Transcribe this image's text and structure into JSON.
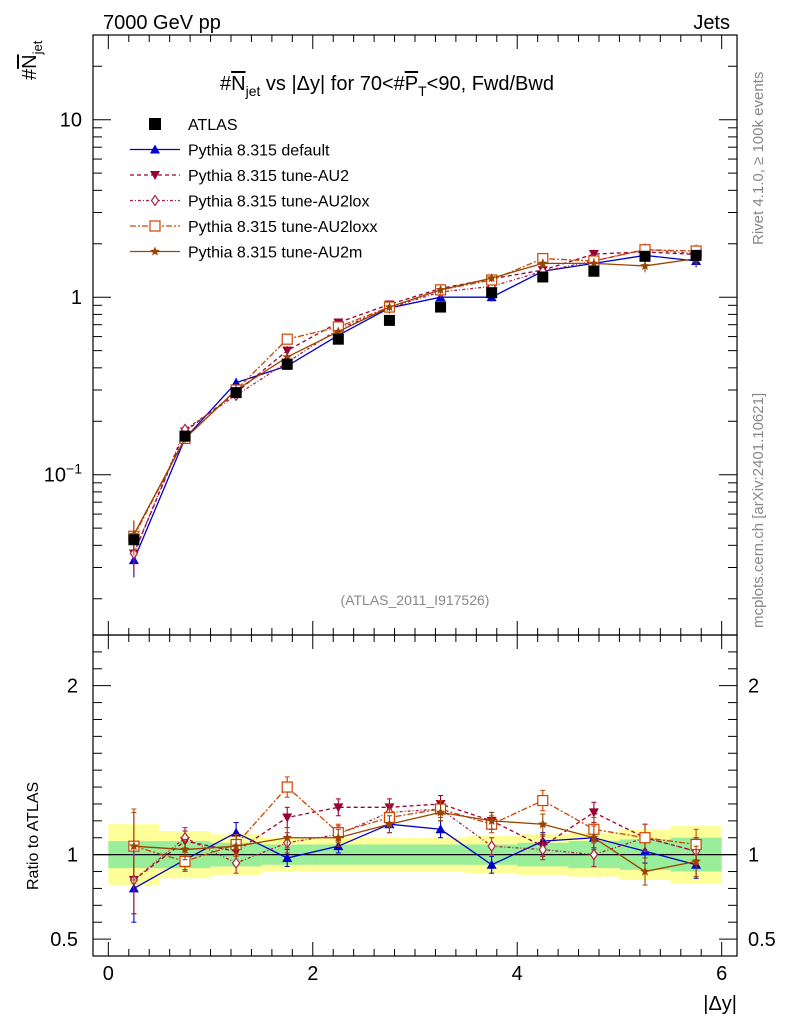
{
  "header": {
    "left": "7000 GeV pp",
    "right": "Jets"
  },
  "side_labels": {
    "rivet": "Rivet 4.1.0, ≥ 100k events",
    "mcplots": "mcplots.cern.ch [arXiv:2401.10621]"
  },
  "watermark": "(ATLAS_2011_I917526)",
  "chart_data": {
    "type": "line",
    "title": "#N̅jet vs |Δy| for 70<#P̅T<90, Fwd/Bwd",
    "title_parts": {
      "hash1": "#",
      "n": "N",
      "jet": "jet",
      "mid": " vs |Δy| for 70<#",
      "p": "P",
      "t": "T",
      "end": "<90, Fwd/Bwd"
    },
    "ylabel_parts": {
      "hash": "#",
      "n": "N",
      "jet": "jet"
    },
    "xlabel": "|Δy|",
    "ratio_ylabel": "Ratio to ATLAS",
    "xlim": [
      -0.15,
      6.15
    ],
    "ylim": [
      0.0125,
      30
    ],
    "ratio_ylim": [
      0.4,
      2.3
    ],
    "x_ticks": [
      {
        "v": 0,
        "t": "0"
      },
      {
        "v": 2,
        "t": "2"
      },
      {
        "v": 4,
        "t": "4"
      },
      {
        "v": 6,
        "t": "6"
      }
    ],
    "y_ticks": [
      {
        "v": 10,
        "t": "10"
      },
      {
        "v": 1,
        "t": "1"
      },
      {
        "v": 0.1,
        "t": "10",
        "sup": "−1"
      }
    ],
    "ratio_ticks": [
      {
        "v": 2,
        "t": "2"
      },
      {
        "v": 1,
        "t": "1"
      },
      {
        "v": 0.5,
        "t": "0.5"
      }
    ],
    "x": [
      0.25,
      0.75,
      1.25,
      1.75,
      2.25,
      2.75,
      3.25,
      3.75,
      4.25,
      4.75,
      5.25,
      5.75
    ],
    "bin_edges": [
      0.0,
      0.5,
      1.0,
      1.5,
      2.0,
      2.5,
      3.0,
      3.5,
      4.0,
      4.5,
      5.0,
      5.5,
      6.0
    ],
    "data": {
      "name": "ATLAS",
      "values": [
        0.043,
        0.165,
        0.29,
        0.42,
        0.58,
        0.74,
        0.88,
        1.06,
        1.3,
        1.4,
        1.7,
        1.72
      ],
      "band_inner": [
        0.08,
        0.08,
        0.07,
        0.06,
        0.06,
        0.06,
        0.06,
        0.06,
        0.07,
        0.08,
        0.09,
        0.1
      ],
      "band_outer": [
        0.18,
        0.14,
        0.12,
        0.1,
        0.1,
        0.1,
        0.1,
        0.11,
        0.12,
        0.13,
        0.15,
        0.17
      ]
    },
    "series": [
      {
        "name": "Pythia 8.315 default",
        "color": "#0000cc",
        "marker": "triangle-up",
        "dash": "",
        "values": [
          0.033,
          0.16,
          0.33,
          0.41,
          0.61,
          0.87,
          1.0,
          1.0,
          1.4,
          1.55,
          1.72,
          1.6
        ],
        "ratio": [
          0.8,
          0.97,
          1.13,
          0.98,
          1.05,
          1.18,
          1.15,
          0.94,
          1.08,
          1.1,
          1.02,
          0.94
        ],
        "err": [
          0.2,
          0.06,
          0.06,
          0.05,
          0.04,
          0.05,
          0.05,
          0.05,
          0.05,
          0.06,
          0.07,
          0.08
        ]
      },
      {
        "name": "Pythia 8.315 tune-AU2",
        "color": "#990033",
        "marker": "triangle-down",
        "dash": "4,3",
        "values": [
          0.036,
          0.175,
          0.29,
          0.5,
          0.72,
          0.91,
          1.12,
          1.27,
          1.42,
          1.75,
          1.8,
          1.74
        ],
        "ratio": [
          0.85,
          1.08,
          1.02,
          1.22,
          1.28,
          1.28,
          1.3,
          1.2,
          1.05,
          1.25,
          1.1,
          1.02
        ],
        "err": [
          0.2,
          0.06,
          0.06,
          0.06,
          0.05,
          0.05,
          0.05,
          0.05,
          0.06,
          0.06,
          0.08,
          0.08
        ]
      },
      {
        "name": "Pythia 8.315 tune-AU2lox",
        "color": "#aa2244",
        "marker": "diamond-open",
        "dash": "3,2,1,2",
        "values": [
          0.036,
          0.18,
          0.28,
          0.43,
          0.66,
          0.87,
          1.07,
          1.15,
          1.4,
          1.6,
          1.86,
          1.76
        ],
        "ratio": [
          0.85,
          1.1,
          0.95,
          1.07,
          1.12,
          1.25,
          1.27,
          1.05,
          1.03,
          1.0,
          1.1,
          1.02
        ],
        "err": [
          0.2,
          0.06,
          0.06,
          0.06,
          0.05,
          0.05,
          0.05,
          0.05,
          0.06,
          0.07,
          0.08,
          0.08
        ]
      },
      {
        "name": "Pythia 8.315 tune-AU2loxx",
        "color": "#cc4400",
        "marker": "square-open",
        "dash": "6,2,2,2",
        "values": [
          0.045,
          0.16,
          0.3,
          0.58,
          0.68,
          0.88,
          1.1,
          1.25,
          1.65,
          1.6,
          1.85,
          1.82
        ],
        "ratio": [
          1.05,
          0.96,
          1.06,
          1.4,
          1.13,
          1.22,
          1.27,
          1.18,
          1.32,
          1.15,
          1.1,
          1.06
        ],
        "err": [
          0.22,
          0.06,
          0.06,
          0.06,
          0.05,
          0.05,
          0.05,
          0.05,
          0.06,
          0.07,
          0.08,
          0.09
        ]
      },
      {
        "name": "Pythia 8.315 tune-AU2m",
        "color": "#994400",
        "marker": "star",
        "dash": "",
        "values": [
          0.046,
          0.16,
          0.3,
          0.46,
          0.64,
          0.88,
          1.1,
          1.28,
          1.55,
          1.55,
          1.5,
          1.65
        ],
        "ratio": [
          1.05,
          1.03,
          1.05,
          1.1,
          1.1,
          1.18,
          1.25,
          1.2,
          1.18,
          1.1,
          0.9,
          0.96
        ],
        "err": [
          0.2,
          0.06,
          0.06,
          0.06,
          0.05,
          0.05,
          0.05,
          0.05,
          0.06,
          0.07,
          0.08,
          0.09
        ]
      }
    ]
  }
}
